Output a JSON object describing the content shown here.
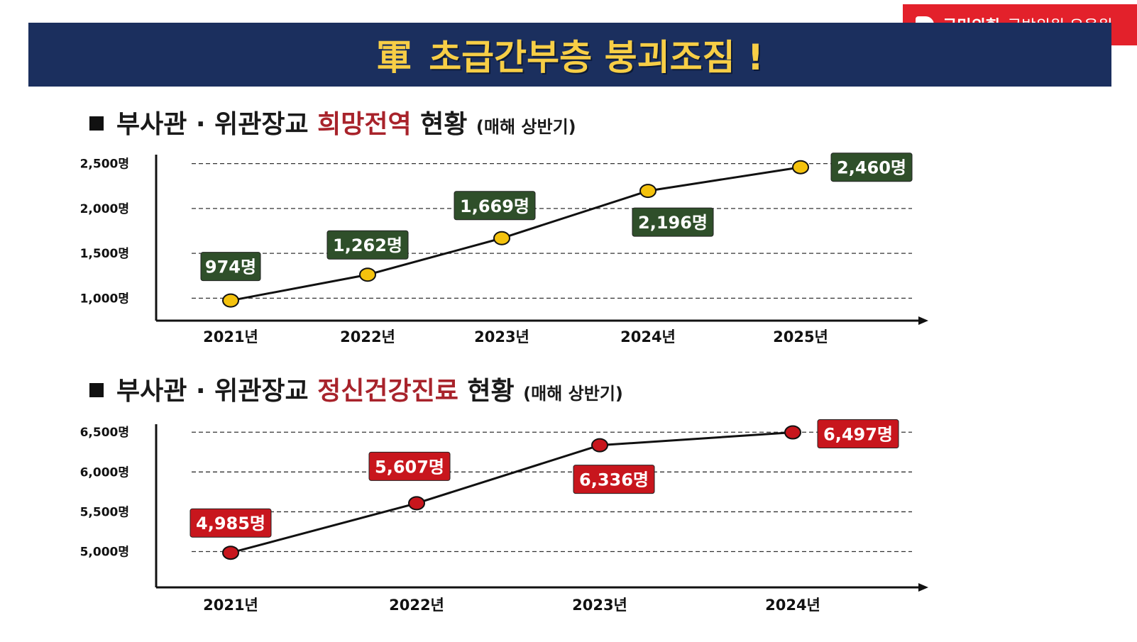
{
  "badge": {
    "party": "국민의힘",
    "member": "국방위원 유용원"
  },
  "banner": {
    "hanja": "軍",
    "title": "초급간부층 붕괴조짐 !"
  },
  "section1": {
    "prefix": "부사관 · 위관장교 ",
    "highlight": "희망전역",
    "suffix": " 현황 ",
    "note": "(매해 상반기)"
  },
  "section2": {
    "prefix": "부사관 · 위관장교 ",
    "highlight": "정신건강진료",
    "suffix": " 현황 ",
    "note": "(매해 상반기)"
  },
  "colors": {
    "banner_bg": "#1b2f5e",
    "banner_text": "#f7ce46",
    "badge": "#e3212b",
    "chart1_marker": "#f4c20d",
    "chart1_label_bg": "#2f4f2a",
    "chart2_marker": "#c8161d",
    "chart2_label_bg": "#c8161d",
    "highlight_text": "#a8232b"
  },
  "chart_data": [
    {
      "type": "line",
      "categories": [
        "2021년",
        "2022년",
        "2023년",
        "2024년",
        "2025년"
      ],
      "values": [
        974,
        1262,
        1669,
        2196,
        2460
      ],
      "data_labels": [
        "974명",
        "1,262명",
        "1,669명",
        "2,196명",
        "2,460명"
      ],
      "yticks": [
        1000,
        1500,
        2000,
        2500
      ],
      "ytick_labels": [
        "1,000명",
        "1,500명",
        "2,000명",
        "2,500명"
      ],
      "ylim": [
        750,
        2600
      ],
      "grid": true
    },
    {
      "type": "line",
      "categories": [
        "2021년",
        "2022년",
        "2023년",
        "2024년"
      ],
      "values": [
        4985,
        5607,
        6336,
        6497
      ],
      "data_labels": [
        "4,985명",
        "5,607명",
        "6,336명",
        "6,497명"
      ],
      "yticks": [
        5000,
        5500,
        6000,
        6500
      ],
      "ytick_labels": [
        "5,000명",
        "5,500명",
        "6,000명",
        "6,500명"
      ],
      "ylim": [
        4550,
        6600
      ],
      "grid": true
    }
  ]
}
